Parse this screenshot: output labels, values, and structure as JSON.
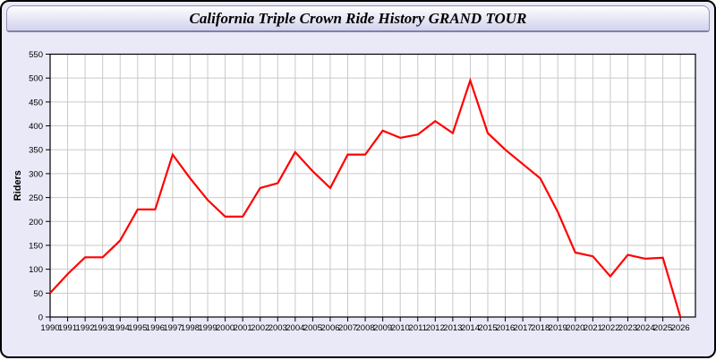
{
  "window": {
    "title": "California Triple Crown Ride History GRAND TOUR"
  },
  "colors": {
    "frame_border": "#000000",
    "frame_bg": "#e9e9f7",
    "titlebar_top": "#fdfdff",
    "titlebar_bottom": "#d2d2ec",
    "line": "#ff0000"
  },
  "chart_data": {
    "type": "line",
    "title": "California Triple Crown Ride History GRAND TOUR",
    "xlabel": "",
    "ylabel": "Riders",
    "x": [
      1990,
      1991,
      1992,
      1993,
      1994,
      1995,
      1996,
      1997,
      1998,
      1999,
      2000,
      2001,
      2002,
      2003,
      2004,
      2005,
      2006,
      2007,
      2008,
      2009,
      2010,
      2011,
      2012,
      2013,
      2014,
      2015,
      2016,
      2017,
      2018,
      2019,
      2020,
      2021,
      2022,
      2023,
      2024,
      2025,
      2026
    ],
    "series": [
      {
        "name": "Riders",
        "color": "#ff0000",
        "values": [
          50,
          90,
          125,
          125,
          160,
          225,
          225,
          340,
          290,
          245,
          210,
          210,
          270,
          280,
          345,
          305,
          270,
          340,
          340,
          390,
          375,
          382,
          410,
          385,
          495,
          385,
          350,
          320,
          290,
          220,
          135,
          127,
          85,
          130,
          122,
          124,
          0
        ]
      }
    ],
    "ylim": [
      0,
      550
    ],
    "yticks": [
      0,
      50,
      100,
      150,
      200,
      250,
      300,
      350,
      400,
      450,
      500,
      550
    ],
    "grid": true,
    "legend": "none",
    "plot_bg": "#ffffff",
    "grid_color": "#c9c9c9",
    "axis_color": "#000000"
  }
}
